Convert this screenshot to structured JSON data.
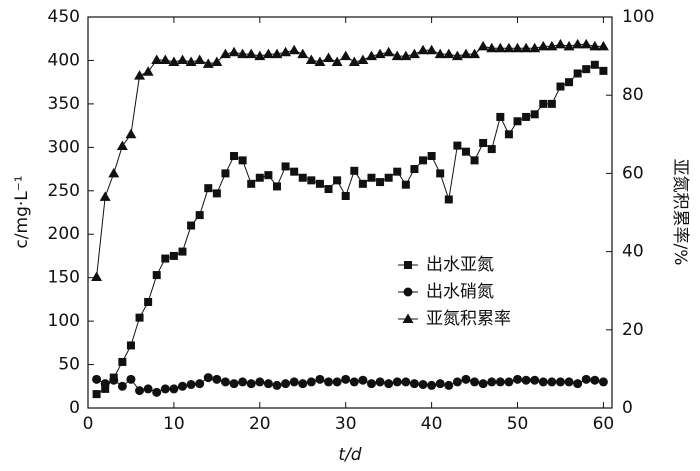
{
  "chart_data": {
    "type": "line",
    "x_label": "t/d",
    "y_label": "c/mg·L⁻¹",
    "y2_label": "亚氮积累率/%",
    "x": [
      1,
      2,
      3,
      4,
      5,
      6,
      7,
      8,
      9,
      10,
      11,
      12,
      13,
      14,
      15,
      16,
      17,
      18,
      19,
      20,
      21,
      22,
      23,
      24,
      25,
      26,
      27,
      28,
      29,
      30,
      31,
      32,
      33,
      34,
      35,
      36,
      37,
      38,
      39,
      40,
      41,
      42,
      43,
      44,
      45,
      46,
      47,
      48,
      49,
      50,
      51,
      52,
      53,
      54,
      55,
      56,
      57,
      58,
      59,
      60
    ],
    "xlim": [
      0,
      61
    ],
    "xticks": [
      0,
      10,
      20,
      30,
      40,
      50,
      60
    ],
    "ylim": [
      0,
      450
    ],
    "yticks": [
      0,
      50,
      100,
      150,
      200,
      250,
      300,
      350,
      400,
      450
    ],
    "y2lim": [
      0,
      100
    ],
    "y2ticks": [
      0,
      20,
      40,
      60,
      80,
      100
    ],
    "legend": "center right",
    "series": [
      {
        "name": "出水亚氮",
        "color": "#111111",
        "marker": "square",
        "values": [
          16,
          22,
          35,
          53,
          72,
          104,
          122,
          153,
          172,
          175,
          180,
          210,
          222,
          253,
          247,
          270,
          290,
          285,
          258,
          265,
          268,
          255,
          278,
          272,
          265,
          262,
          258,
          252,
          262,
          244,
          273,
          258,
          265,
          260,
          265,
          272,
          257,
          275,
          285,
          290,
          270,
          240,
          302,
          295,
          285,
          305,
          298,
          335,
          315,
          330,
          335,
          338,
          350,
          350,
          370,
          375,
          385,
          390,
          395,
          388
        ]
      },
      {
        "name": "出水硝氮",
        "color": "#111111",
        "marker": "circle",
        "values": [
          33,
          28,
          32,
          25,
          33,
          20,
          22,
          18,
          22,
          22,
          25,
          27,
          28,
          35,
          33,
          30,
          28,
          30,
          28,
          30,
          28,
          26,
          28,
          30,
          28,
          30,
          33,
          30,
          30,
          33,
          30,
          32,
          28,
          30,
          28,
          30,
          30,
          28,
          27,
          26,
          28,
          26,
          30,
          33,
          30,
          28,
          30,
          30,
          30,
          33,
          32,
          32,
          30,
          30,
          30,
          30,
          28,
          33,
          32,
          30
        ]
      },
      {
        "name": "亚氮积累率",
        "color": "#111111",
        "marker": "triangle",
        "axis": "y2",
        "values": [
          33.5,
          54,
          60,
          67,
          70,
          85,
          86,
          89,
          89,
          88.5,
          89,
          88.5,
          89,
          88,
          88.5,
          90.5,
          91,
          90.5,
          90.5,
          90,
          90.5,
          90.5,
          91,
          91.5,
          90.5,
          89,
          88.5,
          89.5,
          88.5,
          90,
          88.5,
          89,
          90,
          90.5,
          91,
          90,
          90,
          90.5,
          91.5,
          91.5,
          90.5,
          90.5,
          90,
          90.5,
          90.5,
          92.5,
          92,
          92,
          92,
          92,
          92,
          92,
          92.5,
          92.5,
          93,
          92.5,
          93,
          93,
          92.5,
          92.5
        ]
      }
    ]
  }
}
